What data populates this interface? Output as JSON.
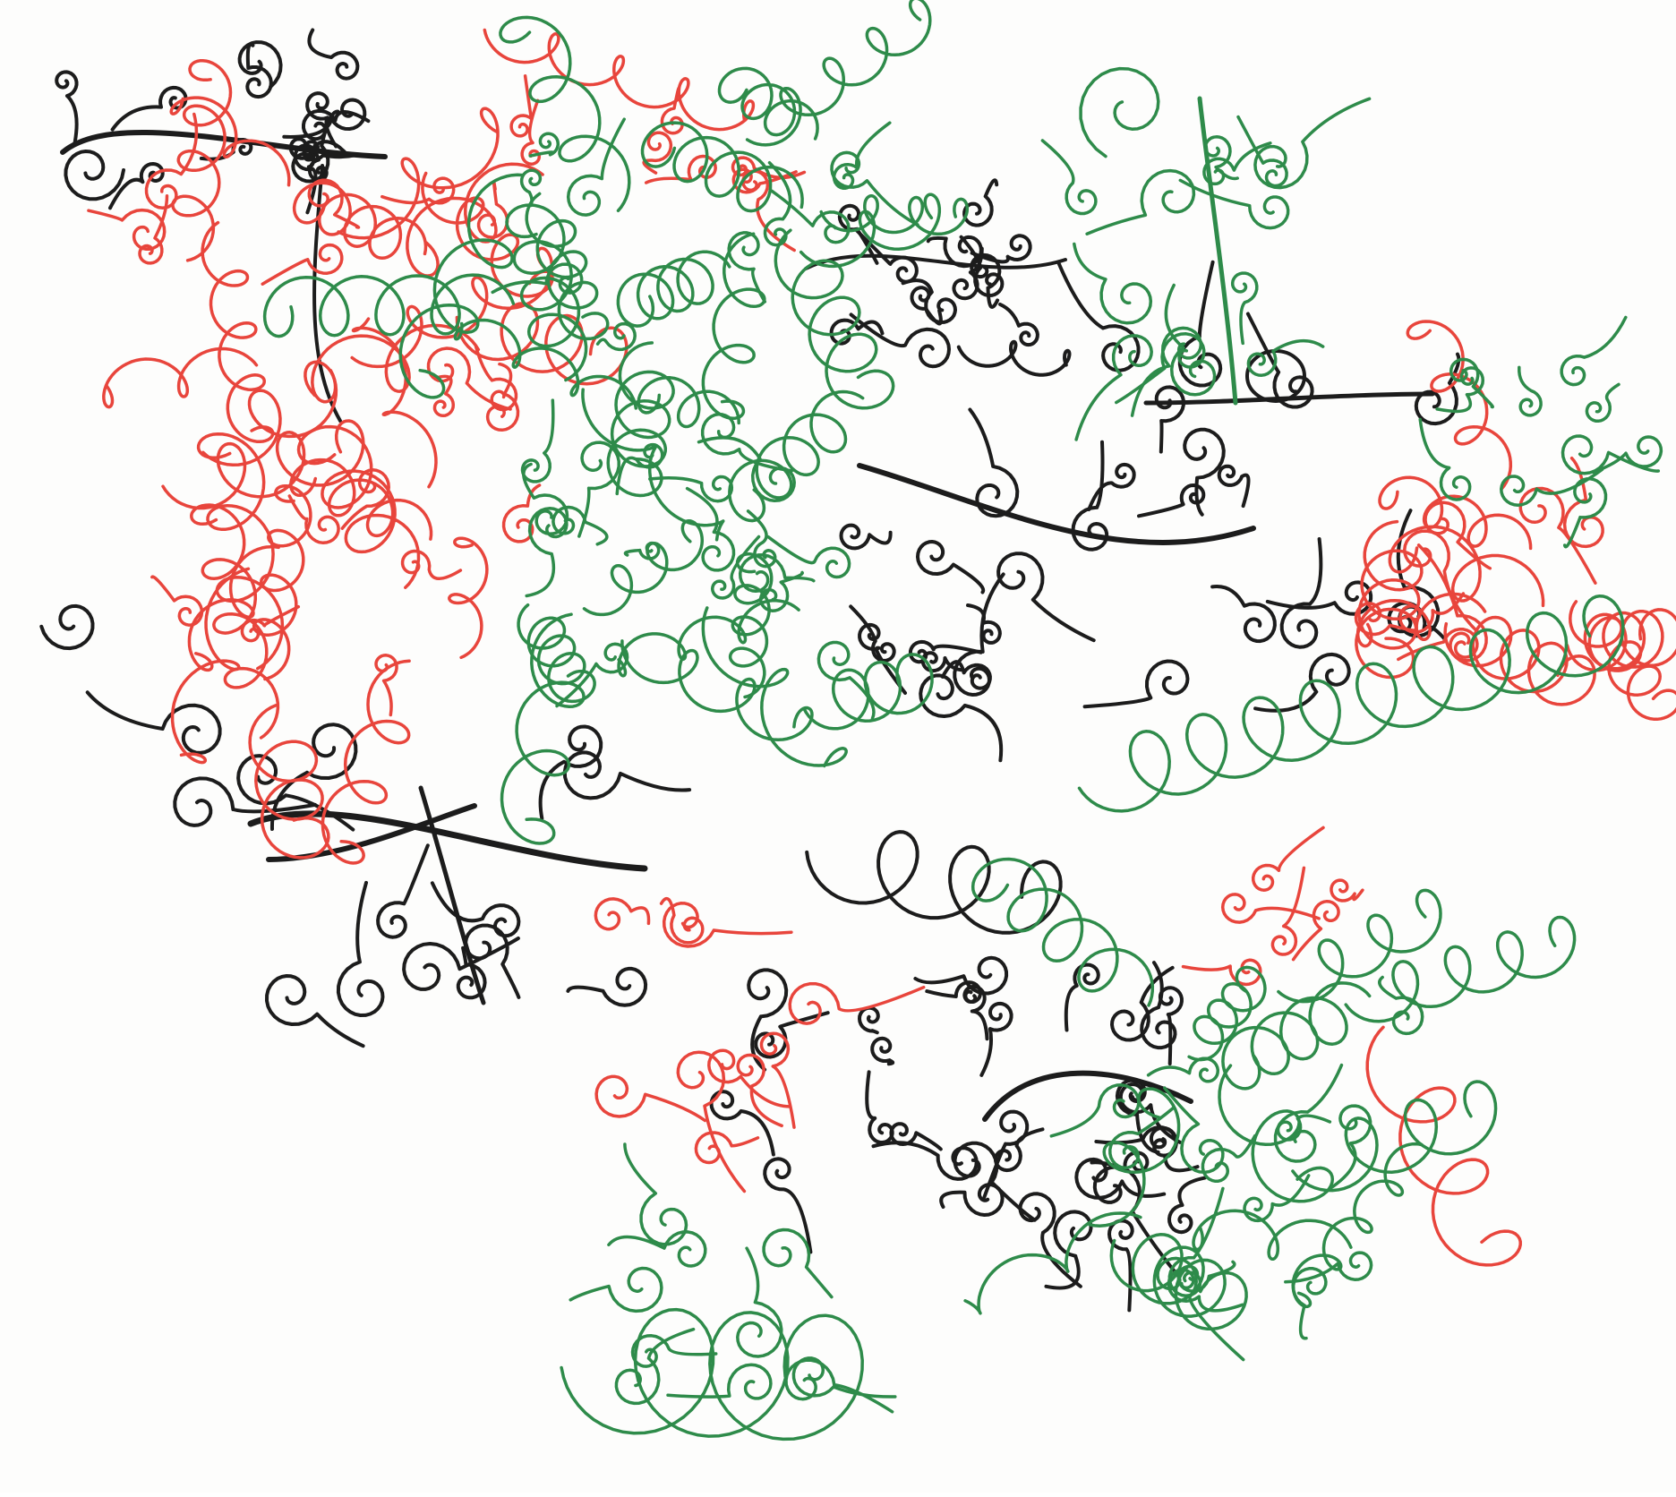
{
  "image": {
    "kind": "hand-drawn marker doodle",
    "description_visible": "",
    "colors": {
      "background": "#fdfdfc",
      "red": "#e8453c",
      "green": "#2e8b4a",
      "black": "#1c1c1c"
    },
    "clusters": [
      {
        "name": "top-left-black-flourish",
        "color": "black"
      },
      {
        "name": "upper-left-red-loops",
        "color": "red"
      },
      {
        "name": "upper-center-green-tangle",
        "color": "green"
      },
      {
        "name": "top-center-black-curls",
        "color": "black"
      },
      {
        "name": "top-right-green-sprig",
        "color": "green"
      },
      {
        "name": "right-black-branch",
        "color": "black"
      },
      {
        "name": "right-red-loops",
        "color": "red"
      },
      {
        "name": "right-green-loops",
        "color": "green"
      },
      {
        "name": "lower-left-black-bow",
        "color": "black"
      },
      {
        "name": "bottom-center-black-cluster",
        "color": "black"
      },
      {
        "name": "bottom-left-green-red-loops",
        "color": "green"
      },
      {
        "name": "bottom-right-red-loops",
        "color": "red"
      },
      {
        "name": "bottom-right-green-loops",
        "color": "green"
      }
    ]
  }
}
